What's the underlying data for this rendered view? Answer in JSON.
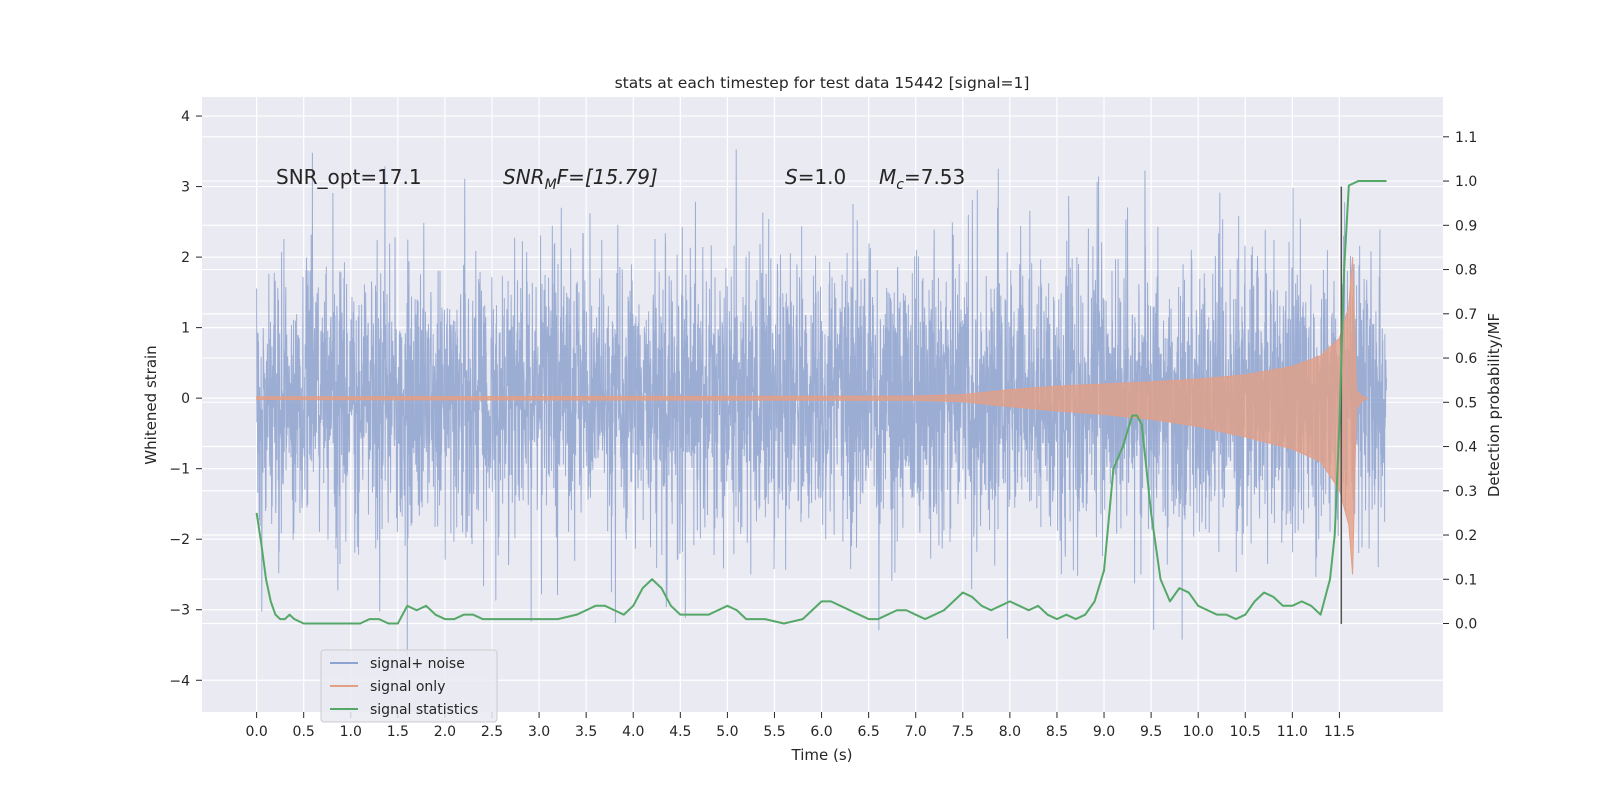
{
  "chart_data": {
    "type": "line",
    "title": "stats at each timestep for test data 15442 [signal=1]",
    "xlabel": "Time (s)",
    "ylabel": "Whitened strain",
    "ylabel_right": "Detection probability/MF",
    "xlim": [
      -0.58,
      12.6
    ],
    "ylim": [
      -4.45,
      4.27
    ],
    "ylim_right": [
      -0.2,
      1.19
    ],
    "x_ticks": [
      0.0,
      0.5,
      1.0,
      1.5,
      2.0,
      2.5,
      3.0,
      3.5,
      4.0,
      4.5,
      5.0,
      5.5,
      6.0,
      6.5,
      7.0,
      7.5,
      8.0,
      8.5,
      9.0,
      9.5,
      10.0,
      10.5,
      11.0,
      11.5
    ],
    "x_tick_labels": [
      "0.0",
      "0.5",
      "1.0",
      "1.5",
      "2.0",
      "2.5",
      "3.0",
      "3.5",
      "4.0",
      "4.5",
      "5.0",
      "5.5",
      "6.0",
      "6.5",
      "7.0",
      "7.5",
      "8.0",
      "8.5",
      "9.0",
      "9.5",
      "10.0",
      "10.5",
      "11.0",
      "11.5"
    ],
    "y_ticks": [
      -4,
      -3,
      -2,
      -1,
      0,
      1,
      2,
      3,
      4
    ],
    "y_tick_labels": [
      "−4",
      "−3",
      "−2",
      "−1",
      "0",
      "1",
      "2",
      "3",
      "4"
    ],
    "y_ticks_right": [
      0.0,
      0.1,
      0.2,
      0.3,
      0.4,
      0.5,
      0.6,
      0.7,
      0.8,
      0.9,
      1.0,
      1.1
    ],
    "y_tick_labels_right": [
      "0.0",
      "0.1",
      "0.2",
      "0.3",
      "0.4",
      "0.5",
      "0.6",
      "0.7",
      "0.8",
      "0.9",
      "1.0",
      "1.1"
    ],
    "grid": true,
    "legend_position": "lower-left",
    "annotations": {
      "snr_opt": "SNR_opt=17.1",
      "snr_mf_sym": "SNR",
      "snr_mf_sub": "M",
      "snr_mf_rest": "F=[15.79]",
      "s_sym": "S",
      "s_rest": "=1.0",
      "mc_sym": "M",
      "mc_sub": "c",
      "mc_rest": "=7.53"
    },
    "series": [
      {
        "name": "signal+ noise",
        "color": "#8ea2cf",
        "kind": "dense-noise",
        "axis": "left",
        "x_range": [
          0.0,
          12.0
        ],
        "std": 1.0,
        "y_range": [
          -4.1,
          3.9
        ]
      },
      {
        "name": "signal only",
        "color": "#e39f86",
        "kind": "chirp-envelope",
        "axis": "left",
        "envelope_x": [
          0.0,
          7.0,
          7.5,
          8.0,
          8.5,
          9.0,
          9.5,
          10.0,
          10.5,
          11.0,
          11.3,
          11.5,
          11.6,
          11.64,
          11.68,
          11.75,
          11.8
        ],
        "envelope_upper": [
          0.02,
          0.03,
          0.05,
          0.12,
          0.17,
          0.2,
          0.23,
          0.27,
          0.33,
          0.45,
          0.6,
          0.85,
          1.3,
          2.0,
          0.1,
          0.02,
          0.0
        ],
        "envelope_lower": [
          -0.02,
          -0.03,
          -0.05,
          -0.12,
          -0.18,
          -0.23,
          -0.3,
          -0.4,
          -0.55,
          -0.72,
          -0.9,
          -1.3,
          -1.8,
          -2.5,
          -0.15,
          -0.03,
          0.0
        ]
      },
      {
        "name": "signal statistics",
        "color": "#55a868",
        "kind": "line",
        "axis": "right",
        "x": [
          0.0,
          0.05,
          0.1,
          0.15,
          0.2,
          0.25,
          0.3,
          0.35,
          0.4,
          0.5,
          0.6,
          0.7,
          0.8,
          0.9,
          1.0,
          1.1,
          1.2,
          1.3,
          1.4,
          1.5,
          1.6,
          1.7,
          1.8,
          1.9,
          2.0,
          2.1,
          2.2,
          2.3,
          2.4,
          2.5,
          2.6,
          2.8,
          3.0,
          3.2,
          3.4,
          3.5,
          3.6,
          3.7,
          3.8,
          3.9,
          4.0,
          4.1,
          4.2,
          4.3,
          4.4,
          4.5,
          4.7,
          4.8,
          4.9,
          5.0,
          5.1,
          5.2,
          5.4,
          5.6,
          5.8,
          5.9,
          6.0,
          6.1,
          6.2,
          6.3,
          6.4,
          6.5,
          6.6,
          6.7,
          6.8,
          6.9,
          7.0,
          7.1,
          7.2,
          7.3,
          7.4,
          7.5,
          7.6,
          7.7,
          7.8,
          7.9,
          8.0,
          8.1,
          8.2,
          8.3,
          8.4,
          8.5,
          8.6,
          8.7,
          8.8,
          8.9,
          9.0,
          9.1,
          9.2,
          9.3,
          9.35,
          9.4,
          9.5,
          9.6,
          9.7,
          9.8,
          9.9,
          10.0,
          10.1,
          10.2,
          10.3,
          10.4,
          10.5,
          10.6,
          10.7,
          10.8,
          10.9,
          11.0,
          11.1,
          11.2,
          11.3,
          11.4,
          11.45,
          11.5,
          11.55,
          11.6,
          11.7,
          11.8,
          11.9,
          12.0
        ],
        "y": [
          0.25,
          0.18,
          0.1,
          0.05,
          0.02,
          0.01,
          0.01,
          0.02,
          0.01,
          0.0,
          0.0,
          0.0,
          0.0,
          0.0,
          0.0,
          0.0,
          0.01,
          0.01,
          0.0,
          0.0,
          0.04,
          0.03,
          0.04,
          0.02,
          0.01,
          0.01,
          0.02,
          0.02,
          0.01,
          0.01,
          0.01,
          0.01,
          0.01,
          0.01,
          0.02,
          0.03,
          0.04,
          0.04,
          0.03,
          0.02,
          0.04,
          0.08,
          0.1,
          0.08,
          0.04,
          0.02,
          0.02,
          0.02,
          0.03,
          0.04,
          0.03,
          0.01,
          0.01,
          0.0,
          0.01,
          0.03,
          0.05,
          0.05,
          0.04,
          0.03,
          0.02,
          0.01,
          0.01,
          0.02,
          0.03,
          0.03,
          0.02,
          0.01,
          0.02,
          0.03,
          0.05,
          0.07,
          0.06,
          0.04,
          0.03,
          0.04,
          0.05,
          0.04,
          0.03,
          0.04,
          0.02,
          0.01,
          0.02,
          0.01,
          0.02,
          0.05,
          0.12,
          0.35,
          0.4,
          0.47,
          0.47,
          0.45,
          0.25,
          0.1,
          0.05,
          0.08,
          0.07,
          0.04,
          0.03,
          0.02,
          0.02,
          0.01,
          0.02,
          0.05,
          0.07,
          0.06,
          0.04,
          0.04,
          0.05,
          0.04,
          0.02,
          0.1,
          0.2,
          0.45,
          0.8,
          0.99,
          1.0,
          1.0,
          1.0,
          1.0
        ]
      }
    ]
  }
}
